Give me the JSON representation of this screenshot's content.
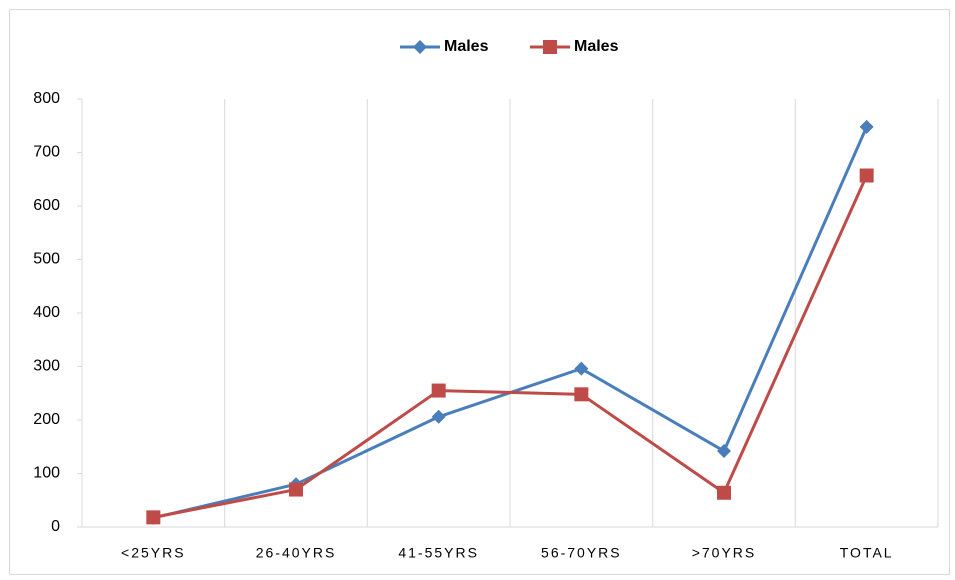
{
  "chart_data": {
    "type": "line",
    "categories": [
      "<25YRS",
      "26-40YRS",
      "41-55YRS",
      "56-70YRS",
      ">70YRS",
      "TOTAL"
    ],
    "series": [
      {
        "name": "Males",
        "color": "#4a7ebb",
        "marker": "diamond",
        "values": [
          17,
          80,
          206,
          296,
          142,
          748
        ]
      },
      {
        "name": "Males",
        "color": "#be4b48",
        "marker": "square",
        "values": [
          18,
          70,
          255,
          248,
          64,
          657
        ]
      }
    ],
    "ylim": [
      0,
      800
    ],
    "yticks": [
      0,
      100,
      200,
      300,
      400,
      500,
      600,
      700,
      800
    ],
    "grid": true,
    "legend": "top"
  }
}
